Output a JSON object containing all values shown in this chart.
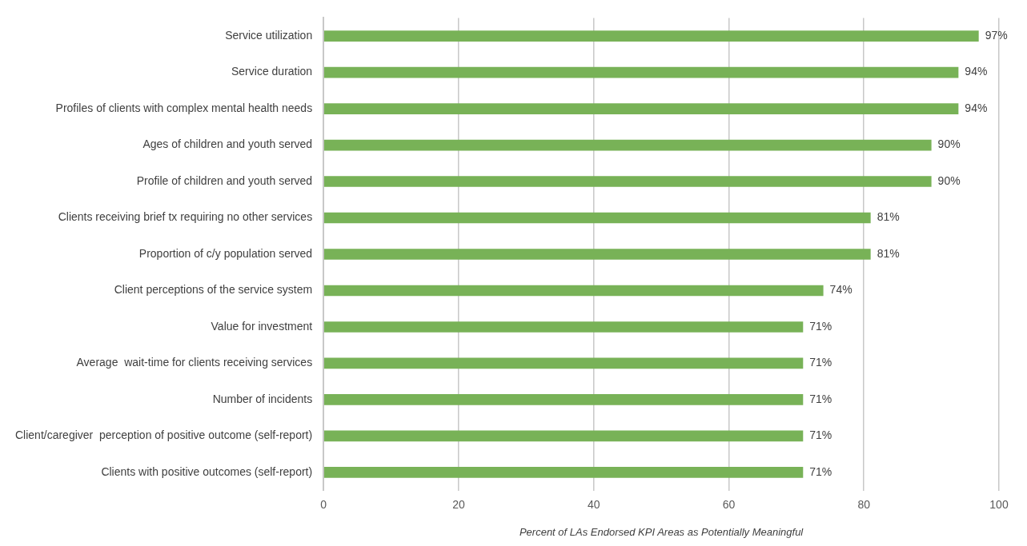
{
  "chart_data": {
    "type": "bar",
    "orientation": "horizontal",
    "xlabel": "Percent of LAs Endorsed KPI Areas as Potentially Meaningful",
    "categories": [
      "Service utilization",
      "Service duration",
      "Profiles of clients with complex mental health needs",
      "Ages of children and youth served",
      "Profile of children and youth served",
      "Clients receiving brief tx requiring no other services",
      "Proportion of c/y population served",
      "Client perceptions of the service system",
      "Value for investment",
      "Average  wait-time for clients receiving services",
      "Number of incidents",
      "Client/caregiver  perception of positive outcome (self-report)",
      "Clients with positive outcomes (self-report)"
    ],
    "values": [
      97,
      94,
      94,
      90,
      90,
      81,
      81,
      74,
      71,
      71,
      71,
      71,
      71
    ],
    "value_labels": [
      "97%",
      "94%",
      "94%",
      "90%",
      "90%",
      "81%",
      "81%",
      "74%",
      "71%",
      "71%",
      "71%",
      "71%",
      "71%"
    ],
    "color": "#78b257",
    "xlim": [
      0,
      100
    ],
    "xticks": [
      0,
      20,
      40,
      60,
      80,
      100
    ],
    "grid": "x",
    "legend": false
  }
}
